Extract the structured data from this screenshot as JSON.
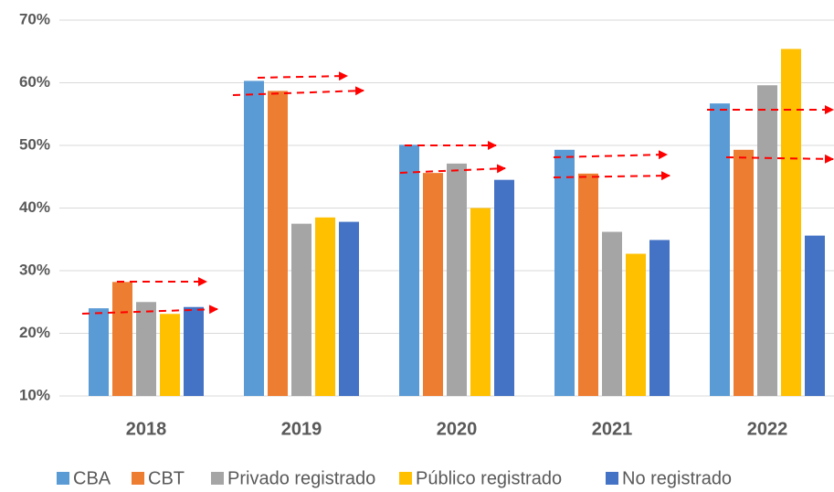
{
  "chart_data": {
    "type": "bar",
    "categories": [
      "2018",
      "2019",
      "2020",
      "2021",
      "2022"
    ],
    "series": [
      {
        "name": "CBA",
        "color": "#5b9bd5",
        "values": [
          24.0,
          60.3,
          50.1,
          49.3,
          56.7
        ]
      },
      {
        "name": "CBT",
        "color": "#ed7d31",
        "values": [
          28.2,
          58.7,
          45.6,
          45.5,
          49.3
        ]
      },
      {
        "name": "Privado registrado",
        "color": "#a5a5a5",
        "values": [
          25.0,
          37.5,
          47.1,
          36.2,
          59.6
        ]
      },
      {
        "name": "Público registrado",
        "color": "#ffc000",
        "values": [
          23.1,
          38.5,
          40.0,
          32.7,
          65.4
        ]
      },
      {
        "name": "No registrado",
        "color": "#4472c4",
        "values": [
          24.2,
          37.8,
          44.5,
          34.9,
          35.6
        ]
      }
    ],
    "ylim": [
      10,
      70
    ],
    "yticks": [
      {
        "value": 10,
        "label": "10%"
      },
      {
        "value": 20,
        "label": "20%"
      },
      {
        "value": 30,
        "label": "30%"
      },
      {
        "value": 40,
        "label": "40%"
      },
      {
        "value": 50,
        "label": "50%"
      },
      {
        "value": 60,
        "label": "60%"
      },
      {
        "value": 70,
        "label": "70%"
      }
    ],
    "grid": true,
    "legend": "bottom"
  }
}
